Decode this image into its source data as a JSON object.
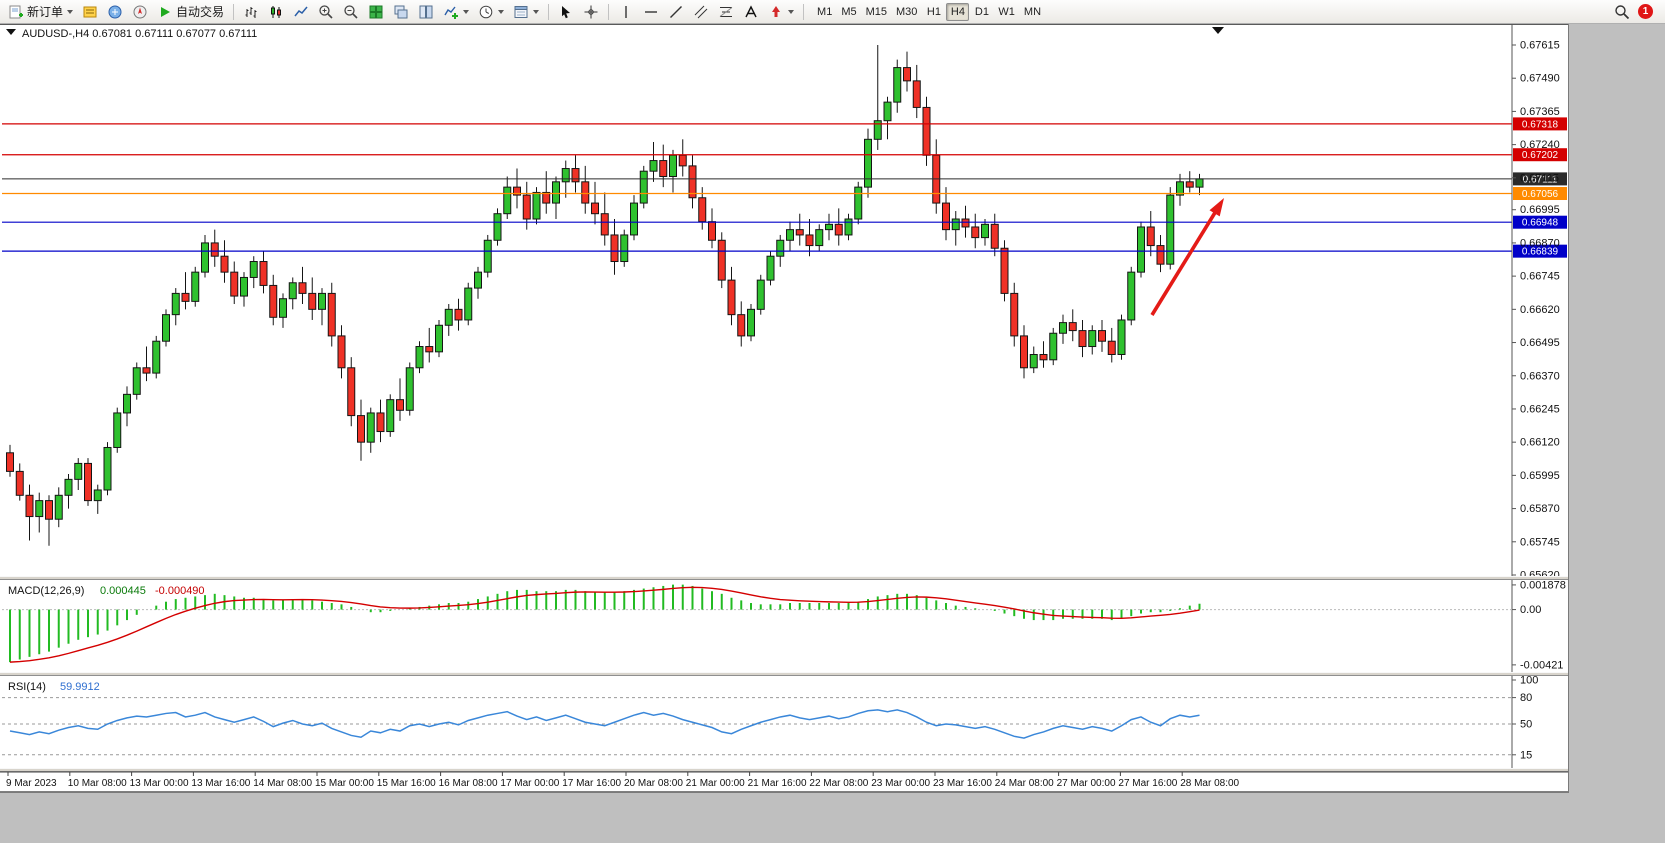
{
  "toolbar": {
    "new_order_label": "新订单",
    "autotrading_label": "自动交易",
    "timeframes": [
      "M1",
      "M5",
      "M15",
      "M30",
      "H1",
      "H4",
      "D1",
      "W1",
      "MN"
    ],
    "active_timeframe": "H4",
    "notification_count": "1",
    "icon_names": [
      "new-order-icon",
      "market-watch-icon",
      "data-window-icon",
      "navigator-icon",
      "autotrading-icon",
      "bar-chart-icon",
      "candlestick-chart-icon",
      "line-chart-icon",
      "zoom-in-icon",
      "zoom-out-icon",
      "tile-windows-icon",
      "cascade-windows-icon",
      "split-windows-icon",
      "add-indicator-icon",
      "period-clock-icon",
      "template-icon",
      "cursor-icon",
      "crosshair-icon",
      "vertical-line-icon",
      "horizontal-line-icon",
      "trendline-icon",
      "channel-icon",
      "fibonacci-icon",
      "text-tool-icon",
      "arrow-tool-icon",
      "search-icon",
      "notification-badge"
    ]
  },
  "chart_data": [
    {
      "type": "candlestick",
      "title": "AUDUSD-,H4",
      "ohlc": "0.67081 0.67111 0.67077 0.67111",
      "colors": {
        "up": "#2fc12f",
        "down": "#ef3126",
        "wick": "#151515"
      },
      "y_axis_labels": [
        "0.67615",
        "0.67490",
        "0.67365",
        "0.67240",
        "0.67115",
        "0.66995",
        "0.66870",
        "0.66745",
        "0.66620",
        "0.66495",
        "0.66370",
        "0.66245",
        "0.66120",
        "0.65995",
        "0.65870",
        "0.65745",
        "0.65620"
      ],
      "x_axis_labels": [
        "9 Mar 2023",
        "10 Mar 08:00",
        "13 Mar 00:00",
        "13 Mar 16:00",
        "14 Mar 08:00",
        "15 Mar 00:00",
        "15 Mar 16:00",
        "16 Mar 08:00",
        "17 Mar 00:00",
        "17 Mar 16:00",
        "20 Mar 08:00",
        "21 Mar 00:00",
        "21 Mar 16:00",
        "22 Mar 08:00",
        "23 Mar 00:00",
        "23 Mar 16:00",
        "24 Mar 08:00",
        "27 Mar 00:00",
        "27 Mar 16:00",
        "28 Mar 08:00"
      ],
      "price_lines": [
        {
          "price": 0.67318,
          "label": "0.67318",
          "color": "#d40000",
          "kind": "resistance"
        },
        {
          "price": 0.67202,
          "label": "0.67202",
          "color": "#d40000",
          "kind": "resistance"
        },
        {
          "price": 0.67111,
          "label": "0.67111",
          "color": "#2b2b2b",
          "kind": "current"
        },
        {
          "price": 0.67056,
          "label": "0.67056",
          "color": "#ff8a00",
          "kind": "pivot"
        },
        {
          "price": 0.66948,
          "label": "0.66948",
          "color": "#0000c8",
          "kind": "support"
        },
        {
          "price": 0.66839,
          "label": "0.66839",
          "color": "#0000c8",
          "kind": "support"
        }
      ],
      "annotation": {
        "type": "arrow-up",
        "color": "#e41b17"
      },
      "candles": [
        [
          0.6608,
          0.6611,
          0.6599,
          0.6601
        ],
        [
          0.6601,
          0.6604,
          0.659,
          0.6592
        ],
        [
          0.6592,
          0.6596,
          0.6575,
          0.6584
        ],
        [
          0.6584,
          0.6593,
          0.6578,
          0.659
        ],
        [
          0.659,
          0.6592,
          0.6573,
          0.6583
        ],
        [
          0.6583,
          0.6595,
          0.658,
          0.6592
        ],
        [
          0.6592,
          0.66,
          0.6587,
          0.6598
        ],
        [
          0.6598,
          0.6606,
          0.6594,
          0.6604
        ],
        [
          0.6604,
          0.6606,
          0.6588,
          0.659
        ],
        [
          0.659,
          0.6596,
          0.6585,
          0.6594
        ],
        [
          0.6594,
          0.6612,
          0.6592,
          0.661
        ],
        [
          0.661,
          0.6625,
          0.6608,
          0.6623
        ],
        [
          0.6623,
          0.6633,
          0.6618,
          0.663
        ],
        [
          0.663,
          0.6642,
          0.6628,
          0.664
        ],
        [
          0.664,
          0.6648,
          0.6635,
          0.6638
        ],
        [
          0.6638,
          0.6652,
          0.6636,
          0.665
        ],
        [
          0.665,
          0.6662,
          0.6648,
          0.666
        ],
        [
          0.666,
          0.667,
          0.6656,
          0.6668
        ],
        [
          0.6668,
          0.6676,
          0.6662,
          0.6665
        ],
        [
          0.6665,
          0.6678,
          0.6663,
          0.6676
        ],
        [
          0.6676,
          0.669,
          0.6674,
          0.6687
        ],
        [
          0.6687,
          0.6692,
          0.6678,
          0.6682
        ],
        [
          0.6682,
          0.6688,
          0.6672,
          0.6676
        ],
        [
          0.6676,
          0.668,
          0.6664,
          0.6667
        ],
        [
          0.6667,
          0.6676,
          0.6663,
          0.6674
        ],
        [
          0.6674,
          0.6682,
          0.667,
          0.668
        ],
        [
          0.668,
          0.6684,
          0.6668,
          0.6671
        ],
        [
          0.6671,
          0.6675,
          0.6656,
          0.6659
        ],
        [
          0.6659,
          0.6668,
          0.6655,
          0.6666
        ],
        [
          0.6666,
          0.6674,
          0.6662,
          0.6672
        ],
        [
          0.6672,
          0.6678,
          0.6664,
          0.6668
        ],
        [
          0.6668,
          0.6674,
          0.6658,
          0.6662
        ],
        [
          0.6662,
          0.667,
          0.6656,
          0.6668
        ],
        [
          0.6668,
          0.6672,
          0.6648,
          0.6652
        ],
        [
          0.6652,
          0.6656,
          0.6636,
          0.664
        ],
        [
          0.664,
          0.6644,
          0.6618,
          0.6622
        ],
        [
          0.6622,
          0.6628,
          0.6605,
          0.6612
        ],
        [
          0.6612,
          0.6625,
          0.6608,
          0.6623
        ],
        [
          0.6623,
          0.6628,
          0.6612,
          0.6616
        ],
        [
          0.6616,
          0.663,
          0.6614,
          0.6628
        ],
        [
          0.6628,
          0.6636,
          0.662,
          0.6624
        ],
        [
          0.6624,
          0.6642,
          0.6622,
          0.664
        ],
        [
          0.664,
          0.665,
          0.6638,
          0.6648
        ],
        [
          0.6648,
          0.6655,
          0.6642,
          0.6646
        ],
        [
          0.6646,
          0.6658,
          0.6644,
          0.6656
        ],
        [
          0.6656,
          0.6664,
          0.6652,
          0.6662
        ],
        [
          0.6662,
          0.6666,
          0.6654,
          0.6658
        ],
        [
          0.6658,
          0.6672,
          0.6656,
          0.667
        ],
        [
          0.667,
          0.6678,
          0.6666,
          0.6676
        ],
        [
          0.6676,
          0.669,
          0.6674,
          0.6688
        ],
        [
          0.6688,
          0.67,
          0.6686,
          0.6698
        ],
        [
          0.6698,
          0.6712,
          0.6696,
          0.6708
        ],
        [
          0.6708,
          0.6715,
          0.67,
          0.6705
        ],
        [
          0.6705,
          0.671,
          0.6692,
          0.6696
        ],
        [
          0.6696,
          0.6708,
          0.6694,
          0.6706
        ],
        [
          0.6706,
          0.6714,
          0.6698,
          0.6702
        ],
        [
          0.6702,
          0.6712,
          0.6696,
          0.671
        ],
        [
          0.671,
          0.6718,
          0.6704,
          0.6715
        ],
        [
          0.6715,
          0.672,
          0.6706,
          0.671
        ],
        [
          0.671,
          0.6716,
          0.6698,
          0.6702
        ],
        [
          0.6702,
          0.671,
          0.6694,
          0.6698
        ],
        [
          0.6698,
          0.6706,
          0.6686,
          0.669
        ],
        [
          0.669,
          0.6696,
          0.6675,
          0.668
        ],
        [
          0.668,
          0.6692,
          0.6678,
          0.669
        ],
        [
          0.669,
          0.6705,
          0.6688,
          0.6702
        ],
        [
          0.6702,
          0.6716,
          0.67,
          0.6714
        ],
        [
          0.6714,
          0.6725,
          0.671,
          0.6718
        ],
        [
          0.6718,
          0.6724,
          0.6708,
          0.6712
        ],
        [
          0.6712,
          0.6722,
          0.6706,
          0.672
        ],
        [
          0.672,
          0.6726,
          0.6712,
          0.6716
        ],
        [
          0.6716,
          0.672,
          0.67,
          0.6704
        ],
        [
          0.6704,
          0.6708,
          0.6692,
          0.6695
        ],
        [
          0.6695,
          0.67,
          0.6685,
          0.6688
        ],
        [
          0.6688,
          0.6691,
          0.667,
          0.6673
        ],
        [
          0.6673,
          0.6678,
          0.6656,
          0.666
        ],
        [
          0.666,
          0.6665,
          0.6648,
          0.6652
        ],
        [
          0.6652,
          0.6664,
          0.665,
          0.6662
        ],
        [
          0.6662,
          0.6675,
          0.666,
          0.6673
        ],
        [
          0.6673,
          0.6684,
          0.6671,
          0.6682
        ],
        [
          0.6682,
          0.669,
          0.6678,
          0.6688
        ],
        [
          0.6688,
          0.6695,
          0.6684,
          0.6692
        ],
        [
          0.6692,
          0.6698,
          0.6686,
          0.669
        ],
        [
          0.669,
          0.6696,
          0.6682,
          0.6686
        ],
        [
          0.6686,
          0.6694,
          0.6684,
          0.6692
        ],
        [
          0.6692,
          0.6698,
          0.6688,
          0.6694
        ],
        [
          0.6694,
          0.67,
          0.6686,
          0.669
        ],
        [
          0.669,
          0.6698,
          0.6688,
          0.6696
        ],
        [
          0.6696,
          0.671,
          0.6694,
          0.6708
        ],
        [
          0.6708,
          0.673,
          0.6704,
          0.6726
        ],
        [
          0.6726,
          0.67615,
          0.6722,
          0.6733
        ],
        [
          0.6733,
          0.6742,
          0.6726,
          0.674
        ],
        [
          0.674,
          0.6756,
          0.6736,
          0.6753
        ],
        [
          0.6753,
          0.6759,
          0.6744,
          0.6748
        ],
        [
          0.6748,
          0.6754,
          0.6734,
          0.6738
        ],
        [
          0.6738,
          0.6742,
          0.6716,
          0.672
        ],
        [
          0.672,
          0.6726,
          0.6698,
          0.6702
        ],
        [
          0.6702,
          0.6708,
          0.6688,
          0.6692
        ],
        [
          0.6692,
          0.6699,
          0.6686,
          0.6696
        ],
        [
          0.6696,
          0.6701,
          0.6689,
          0.6693
        ],
        [
          0.6693,
          0.6698,
          0.6685,
          0.6689
        ],
        [
          0.6689,
          0.6696,
          0.6686,
          0.6694
        ],
        [
          0.6694,
          0.6698,
          0.6682,
          0.6685
        ],
        [
          0.6685,
          0.6688,
          0.6665,
          0.6668
        ],
        [
          0.6668,
          0.6672,
          0.6648,
          0.6652
        ],
        [
          0.6652,
          0.6656,
          0.6636,
          0.664
        ],
        [
          0.664,
          0.6648,
          0.6638,
          0.6645
        ],
        [
          0.6645,
          0.665,
          0.664,
          0.6643
        ],
        [
          0.6643,
          0.6655,
          0.6641,
          0.6653
        ],
        [
          0.6653,
          0.666,
          0.6649,
          0.6657
        ],
        [
          0.6657,
          0.6662,
          0.665,
          0.6654
        ],
        [
          0.6654,
          0.6658,
          0.6644,
          0.6648
        ],
        [
          0.6648,
          0.6656,
          0.6645,
          0.6654
        ],
        [
          0.6654,
          0.6658,
          0.6646,
          0.665
        ],
        [
          0.665,
          0.6655,
          0.6642,
          0.6645
        ],
        [
          0.6645,
          0.666,
          0.6643,
          0.6658
        ],
        [
          0.6658,
          0.6678,
          0.6656,
          0.6676
        ],
        [
          0.6676,
          0.6695,
          0.6674,
          0.6693
        ],
        [
          0.6693,
          0.6699,
          0.6682,
          0.6686
        ],
        [
          0.6686,
          0.669,
          0.6676,
          0.6679
        ],
        [
          0.6679,
          0.6708,
          0.6677,
          0.6705
        ],
        [
          0.6705,
          0.6713,
          0.6701,
          0.671
        ],
        [
          0.671,
          0.6714,
          0.6706,
          0.6708
        ],
        [
          0.6708,
          0.6713,
          0.6705,
          0.67111
        ]
      ]
    },
    {
      "type": "bar",
      "title": "MACD(12,26,9)",
      "value_main": "0.000445",
      "value_signal": "-0.000490",
      "y_axis_labels": [
        "0.001878",
        "0.00",
        "-0.00421"
      ],
      "ylim": [
        -0.0046,
        0.0021
      ],
      "histogram_color": "#22bb22",
      "signal_color": "#d40000",
      "histogram": [
        -0.004,
        -0.0038,
        -0.0036,
        -0.0034,
        -0.0032,
        -0.0029,
        -0.0026,
        -0.0023,
        -0.0021,
        -0.0019,
        -0.0016,
        -0.0012,
        -0.0008,
        -0.0004,
        0.0,
        0.0003,
        0.0006,
        0.0008,
        0.0009,
        0.001,
        0.0011,
        0.0012,
        0.0011,
        0.001,
        0.0009,
        0.0009,
        0.0008,
        0.0007,
        0.0007,
        0.0008,
        0.0008,
        0.0007,
        0.0006,
        0.0005,
        0.0004,
        0.0002,
        0.0,
        -0.0002,
        -0.0002,
        -0.0001,
        0.0,
        0.0001,
        0.0002,
        0.0003,
        0.0004,
        0.0005,
        0.0005,
        0.0006,
        0.0008,
        0.001,
        0.0012,
        0.0014,
        0.0015,
        0.0015,
        0.0014,
        0.0014,
        0.0014,
        0.0015,
        0.0015,
        0.0014,
        0.0013,
        0.0013,
        0.0013,
        0.0014,
        0.0015,
        0.0016,
        0.0017,
        0.0018,
        0.0019,
        0.0019,
        0.0018,
        0.0016,
        0.0014,
        0.0012,
        0.0009,
        0.0007,
        0.0005,
        0.0004,
        0.0004,
        0.0004,
        0.0005,
        0.0005,
        0.0005,
        0.0005,
        0.0005,
        0.0005,
        0.0005,
        0.0006,
        0.0008,
        0.001,
        0.0011,
        0.0012,
        0.0012,
        0.0011,
        0.0009,
        0.0007,
        0.0005,
        0.0003,
        0.0002,
        0.0001,
        0.0,
        -0.0001,
        -0.0003,
        -0.0005,
        -0.0007,
        -0.0008,
        -0.0008,
        -0.0008,
        -0.0007,
        -0.0007,
        -0.0007,
        -0.0007,
        -0.0007,
        -0.0008,
        -0.0007,
        -0.0005,
        -0.0003,
        -0.0002,
        -0.0002,
        -0.0001,
        0.0001,
        0.0003,
        0.000445
      ]
    },
    {
      "type": "line",
      "title": "RSI(14)",
      "value": "59.9912",
      "y_axis_labels": [
        "100",
        "80",
        "50",
        "15"
      ],
      "levels": [
        80,
        50,
        15
      ],
      "ylim": [
        0,
        100
      ],
      "line_color": "#3a87d9",
      "values": [
        42,
        40,
        38,
        41,
        39,
        43,
        46,
        48,
        45,
        44,
        50,
        54,
        57,
        59,
        58,
        60,
        62,
        63,
        58,
        60,
        63,
        58,
        55,
        52,
        55,
        58,
        53,
        47,
        51,
        54,
        50,
        48,
        51,
        45,
        41,
        37,
        35,
        42,
        40,
        44,
        42,
        48,
        50,
        47,
        50,
        52,
        49,
        54,
        57,
        60,
        62,
        64,
        59,
        55,
        58,
        54,
        57,
        60,
        56,
        52,
        50,
        48,
        52,
        56,
        60,
        63,
        60,
        62,
        59,
        55,
        52,
        49,
        46,
        41,
        39,
        44,
        48,
        52,
        55,
        58,
        60,
        57,
        55,
        57,
        59,
        56,
        58,
        62,
        65,
        66,
        64,
        66,
        63,
        58,
        52,
        48,
        50,
        49,
        47,
        45,
        47,
        44,
        40,
        36,
        34,
        38,
        41,
        45,
        48,
        46,
        44,
        47,
        45,
        42,
        48,
        55,
        58,
        52,
        48,
        56,
        60,
        58,
        59.9912
      ]
    }
  ]
}
